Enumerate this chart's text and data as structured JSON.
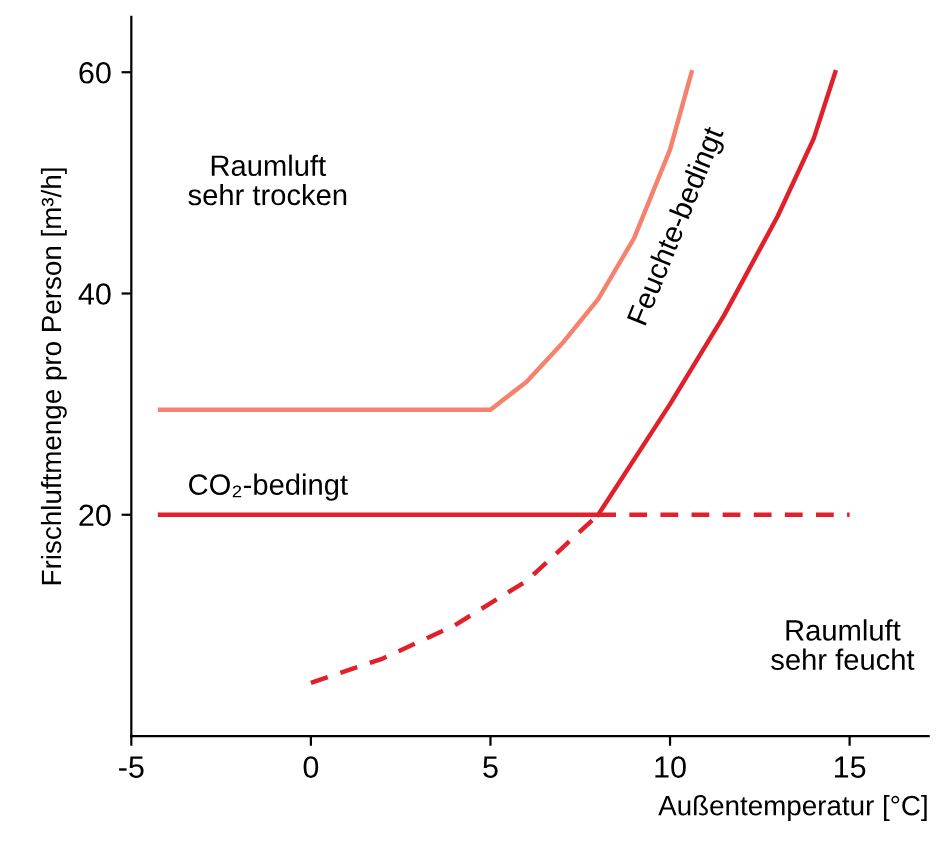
{
  "chart_data": {
    "type": "line",
    "xlabel": "Außentemperatur [°C]",
    "ylabel": "Frischluftmenge pro Person [m³/h]",
    "xlim": [
      -5,
      17.2
    ],
    "ylim": [
      0,
      65
    ],
    "xticks": [
      -5,
      0,
      5,
      10,
      15
    ],
    "yticks": [
      20,
      40,
      60
    ],
    "grid": false,
    "legend": false,
    "marker": "none",
    "series": [
      {
        "color": "#f4826e",
        "line_style": "solid",
        "x": [
          -4.2,
          5,
          6,
          7,
          8,
          9,
          10,
          10.6
        ],
        "values": [
          29.5,
          29.5,
          32,
          35.5,
          39.5,
          45,
          53,
          60
        ]
      },
      {
        "color": "#e0202a",
        "line_style": "solid",
        "x": [
          -4.2,
          8
        ],
        "values": [
          20,
          20
        ]
      },
      {
        "color": "#e0202a",
        "line_style": "dashed",
        "x": [
          8,
          15
        ],
        "values": [
          20,
          20
        ]
      },
      {
        "color": "#e0202a",
        "line_style": "dashed",
        "x": [
          0,
          2,
          4,
          6,
          8
        ],
        "values": [
          4.8,
          7,
          10,
          14,
          20
        ]
      },
      {
        "color": "#e0202a",
        "line_style": "solid",
        "x": [
          8,
          10,
          11.5,
          13,
          14,
          14.6
        ],
        "values": [
          20,
          30,
          38,
          47,
          54,
          60
        ]
      }
    ],
    "annotations": [
      "Raumluft\nsehr trocken",
      "CO₂-bedingt",
      "Feuchte-bedingt",
      "Raumluft\nsehr feucht"
    ]
  }
}
